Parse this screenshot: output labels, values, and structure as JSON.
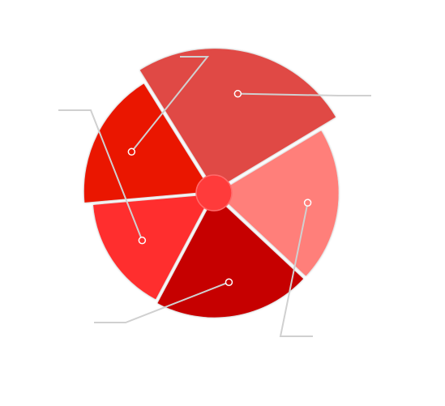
{
  "chart_data": {
    "type": "pie",
    "variant": "polar-area",
    "title": "",
    "categories": [
      "",
      "",
      "",
      "",
      ""
    ],
    "slices": [
      {
        "start_deg": -32,
        "end_deg": 59,
        "radius": 1.0,
        "color": "#e04a44"
      },
      {
        "start_deg": 59,
        "end_deg": 133,
        "radius": 0.86,
        "color": "#ff7f7a"
      },
      {
        "start_deg": 133,
        "end_deg": 208,
        "radius": 0.86,
        "color": "#c60000"
      },
      {
        "start_deg": 208,
        "end_deg": 265,
        "radius": 0.84,
        "color": "#ff2e2e"
      },
      {
        "start_deg": 265,
        "end_deg": 328,
        "radius": 0.9,
        "color": "#ea1400"
      }
    ],
    "legend": "none",
    "labels_shown": false,
    "hub_color": "#ff3b3b"
  }
}
